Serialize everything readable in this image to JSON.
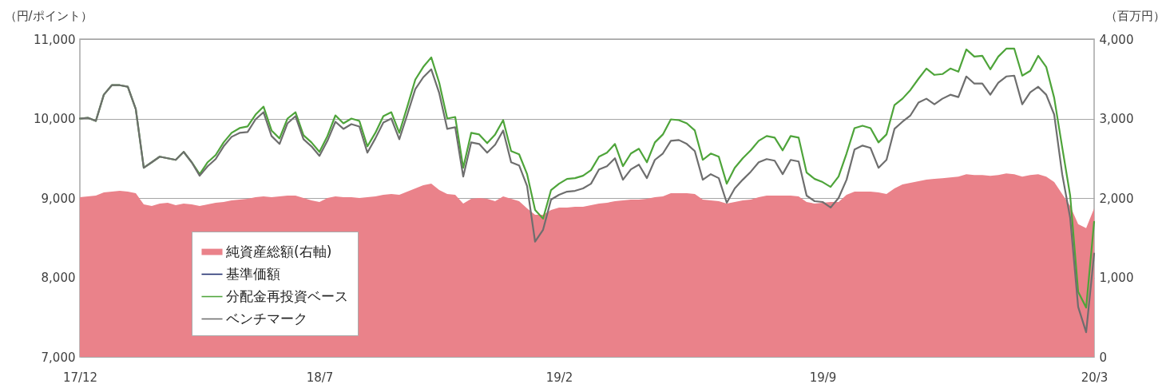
{
  "chart_data": {
    "type": "line",
    "categories": [
      "17/12",
      null,
      null,
      null,
      null,
      null,
      null,
      null,
      null,
      null,
      null,
      null,
      null,
      null,
      null,
      null,
      null,
      null,
      null,
      null,
      null,
      null,
      null,
      null,
      null,
      null,
      null,
      null,
      null,
      null,
      "18/7",
      null,
      null,
      null,
      null,
      null,
      null,
      null,
      null,
      null,
      null,
      null,
      null,
      null,
      null,
      null,
      null,
      null,
      null,
      null,
      null,
      null,
      null,
      null,
      null,
      null,
      null,
      null,
      null,
      null,
      "19/2",
      null,
      null,
      null,
      null,
      null,
      null,
      null,
      null,
      null,
      null,
      null,
      null,
      null,
      null,
      null,
      null,
      null,
      null,
      null,
      null,
      null,
      null,
      null,
      null,
      null,
      null,
      null,
      null,
      null,
      null,
      null,
      null,
      "19/9",
      null,
      null,
      null,
      null,
      null,
      null,
      null,
      null,
      null,
      null,
      null,
      null,
      null,
      null,
      null,
      null,
      null,
      null,
      null,
      null,
      null,
      null,
      null,
      null,
      null,
      null,
      null,
      null,
      null,
      null,
      null,
      null,
      null,
      "20/3"
    ],
    "ylabel": "（円/ポイント）",
    "y2label": "（百万円）",
    "ylim": [
      7000,
      11000
    ],
    "yticks": [
      {
        "value": 7000,
        "label": "7,000"
      },
      {
        "value": 8000,
        "label": "8,000"
      },
      {
        "value": 9000,
        "label": "9,000"
      },
      {
        "value": 10000,
        "label": "10,000"
      },
      {
        "value": 11000,
        "label": "11,000"
      }
    ],
    "y2lim": [
      0,
      4000
    ],
    "y2ticks": [
      0,
      {
        "value": 1000,
        "label": "1,000"
      },
      {
        "value": 2000,
        "label": "2,000"
      },
      {
        "value": 3000,
        "label": "3,000"
      },
      {
        "value": 4000,
        "label": "4,000"
      }
    ],
    "grid": "y",
    "legend": "bottom left",
    "series": [
      {
        "name": "純資産総額(右軸)",
        "type": "area",
        "axis": "y2",
        "color": "#ea828a",
        "values": [
          2010,
          2020,
          2030,
          2070,
          2080,
          2090,
          2080,
          2060,
          1920,
          1900,
          1930,
          1940,
          1910,
          1930,
          1920,
          1900,
          1920,
          1940,
          1950,
          1970,
          1980,
          1990,
          2010,
          2020,
          2010,
          2020,
          2030,
          2030,
          2000,
          1970,
          1950,
          2000,
          2020,
          2010,
          2010,
          2000,
          2010,
          2020,
          2040,
          2050,
          2040,
          2080,
          2120,
          2160,
          2180,
          2100,
          2050,
          2040,
          1930,
          1990,
          2000,
          1990,
          1960,
          2020,
          1990,
          1960,
          1870,
          1790,
          1790,
          1850,
          1880,
          1880,
          1890,
          1890,
          1910,
          1930,
          1940,
          1960,
          1970,
          1980,
          1980,
          1990,
          2010,
          2020,
          2060,
          2060,
          2060,
          2050,
          1980,
          1970,
          1960,
          1930,
          1950,
          1970,
          1980,
          2010,
          2030,
          2030,
          2030,
          2030,
          2020,
          1950,
          1930,
          1940,
          1950,
          1950,
          2040,
          2080,
          2080,
          2080,
          2070,
          2050,
          2120,
          2170,
          2190,
          2210,
          2230,
          2240,
          2250,
          2260,
          2270,
          2300,
          2290,
          2290,
          2280,
          2290,
          2310,
          2300,
          2270,
          2290,
          2300,
          2270,
          2200,
          2050,
          1900,
          1670,
          1620,
          1870
        ]
      },
      {
        "name": "基準価額",
        "type": "line",
        "color": "#1f2d6e",
        "values": [
          null,
          null,
          null,
          null,
          null,
          null,
          null,
          null,
          null,
          null,
          null,
          null,
          null,
          null,
          null,
          null,
          null,
          null,
          null,
          null,
          null,
          null,
          null,
          null,
          null,
          null,
          null,
          null,
          null,
          null,
          null,
          null,
          null,
          null,
          null,
          null,
          null,
          null,
          null,
          null,
          null,
          null,
          null,
          null,
          null,
          null,
          null,
          null,
          null,
          null,
          null,
          null,
          null,
          null,
          null,
          null,
          null,
          null,
          null,
          null,
          null,
          null,
          null,
          null,
          null,
          null,
          null,
          null,
          null,
          null,
          null,
          null,
          null,
          null,
          null,
          null,
          null,
          null,
          null,
          null,
          null,
          null,
          null,
          null,
          null,
          null,
          null,
          null,
          null,
          null,
          null,
          null,
          null,
          null,
          null,
          null,
          null,
          null,
          null,
          null,
          null,
          null,
          null,
          null,
          null,
          null,
          null,
          null,
          null,
          null,
          null,
          null,
          null,
          null,
          null,
          null,
          null,
          null,
          null,
          null,
          null,
          null,
          null,
          null,
          null,
          null,
          null,
          null
        ]
      },
      {
        "name": "分配金再投資ベース",
        "type": "line",
        "color": "#4ea43a",
        "values": [
          10000,
          10010,
          9970,
          10300,
          10420,
          10420,
          10400,
          10120,
          9380,
          9450,
          9520,
          9500,
          9480,
          9580,
          9450,
          9300,
          9450,
          9540,
          9700,
          9820,
          9880,
          9900,
          10050,
          10150,
          9850,
          9750,
          10000,
          10080,
          9790,
          9700,
          9580,
          9780,
          10040,
          9940,
          10000,
          9970,
          9650,
          9820,
          10030,
          10080,
          9820,
          10150,
          10490,
          10650,
          10770,
          10450,
          10000,
          10020,
          9380,
          9820,
          9800,
          9690,
          9800,
          9980,
          9590,
          9550,
          9300,
          8850,
          8740,
          9100,
          9180,
          9240,
          9250,
          9280,
          9350,
          9520,
          9570,
          9680,
          9400,
          9560,
          9620,
          9450,
          9700,
          9800,
          9990,
          9980,
          9940,
          9850,
          9480,
          9560,
          9520,
          9180,
          9380,
          9500,
          9600,
          9720,
          9780,
          9760,
          9600,
          9780,
          9760,
          9320,
          9240,
          9200,
          9140,
          9270,
          9560,
          9880,
          9910,
          9880,
          9700,
          9800,
          10170,
          10250,
          10360,
          10500,
          10630,
          10550,
          10560,
          10630,
          10590,
          10870,
          10780,
          10790,
          10620,
          10780,
          10880,
          10880,
          10540,
          10600,
          10790,
          10650,
          10260,
          9640,
          9030,
          7820,
          7620,
          8700
        ]
      },
      {
        "name": "ベンチマーク",
        "type": "line",
        "color": "#6e6e6e",
        "values": [
          10000,
          10010,
          9970,
          10300,
          10420,
          10420,
          10400,
          10120,
          9380,
          9450,
          9520,
          9500,
          9480,
          9580,
          9450,
          9280,
          9400,
          9490,
          9650,
          9770,
          9820,
          9830,
          9990,
          10080,
          9780,
          9680,
          9940,
          10030,
          9740,
          9650,
          9530,
          9720,
          9960,
          9870,
          9930,
          9900,
          9570,
          9750,
          9950,
          10000,
          9740,
          10050,
          10370,
          10520,
          10620,
          10320,
          9870,
          9890,
          9270,
          9700,
          9680,
          9570,
          9670,
          9850,
          9450,
          9410,
          9150,
          8450,
          8600,
          8980,
          9040,
          9080,
          9090,
          9120,
          9180,
          9360,
          9400,
          9500,
          9230,
          9360,
          9420,
          9250,
          9480,
          9560,
          9720,
          9730,
          9680,
          9590,
          9230,
          9300,
          9250,
          8940,
          9120,
          9230,
          9330,
          9450,
          9490,
          9470,
          9300,
          9480,
          9460,
          9030,
          8960,
          8950,
          8880,
          9000,
          9230,
          9610,
          9660,
          9630,
          9380,
          9480,
          9870,
          9960,
          10040,
          10200,
          10250,
          10180,
          10250,
          10300,
          10270,
          10530,
          10440,
          10440,
          10300,
          10450,
          10530,
          10540,
          10180,
          10330,
          10400,
          10300,
          10050,
          9300,
          8750,
          7630,
          7310,
          8300
        ]
      }
    ]
  }
}
